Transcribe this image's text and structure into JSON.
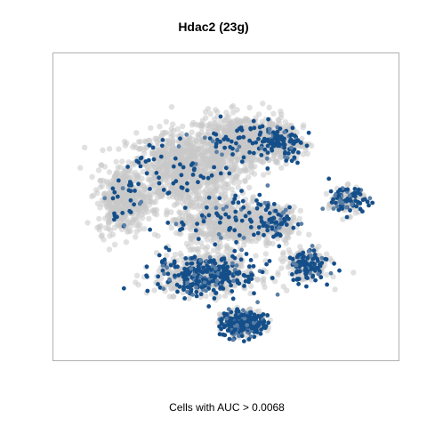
{
  "chart_data": {
    "type": "scatter",
    "title": "Hdac2 (23g)",
    "xlabel": "Cells with AUC > 0.0068",
    "ylabel": "",
    "grid": false,
    "legend": "none",
    "colors": {
      "background_cells": "#c9c9c9",
      "high_auc_cells": "#154f8a",
      "mid_auc_cells": "#5a7fa6"
    },
    "clusters": [
      {
        "name": "upper-left-mass",
        "cx": 0.37,
        "cy": 0.63,
        "sx": 0.16,
        "sy": 0.12,
        "n_bg": 900,
        "n_hi": 60
      },
      {
        "name": "upper-center-mass",
        "cx": 0.55,
        "cy": 0.73,
        "sx": 0.13,
        "sy": 0.08,
        "n_bg": 650,
        "n_hi": 55
      },
      {
        "name": "upper-right-arm",
        "cx": 0.67,
        "cy": 0.72,
        "sx": 0.06,
        "sy": 0.05,
        "n_bg": 160,
        "n_hi": 90
      },
      {
        "name": "left-lobe",
        "cx": 0.18,
        "cy": 0.52,
        "sx": 0.07,
        "sy": 0.1,
        "n_bg": 380,
        "n_hi": 28
      },
      {
        "name": "central-band",
        "cx": 0.5,
        "cy": 0.45,
        "sx": 0.14,
        "sy": 0.08,
        "n_bg": 600,
        "n_hi": 70
      },
      {
        "name": "lower-middle-mass",
        "cx": 0.44,
        "cy": 0.27,
        "sx": 0.14,
        "sy": 0.06,
        "n_bg": 500,
        "n_hi": 300
      },
      {
        "name": "right-lower-arm",
        "cx": 0.75,
        "cy": 0.3,
        "sx": 0.06,
        "sy": 0.05,
        "n_bg": 160,
        "n_hi": 100
      },
      {
        "name": "far-right-island",
        "cx": 0.87,
        "cy": 0.52,
        "sx": 0.05,
        "sy": 0.04,
        "n_bg": 110,
        "n_hi": 70
      },
      {
        "name": "bottom-island",
        "cx": 0.55,
        "cy": 0.1,
        "sx": 0.06,
        "sy": 0.04,
        "n_bg": 150,
        "n_hi": 230
      },
      {
        "name": "mid-right-band",
        "cx": 0.66,
        "cy": 0.45,
        "sx": 0.05,
        "sy": 0.05,
        "n_bg": 160,
        "n_hi": 55
      }
    ]
  }
}
